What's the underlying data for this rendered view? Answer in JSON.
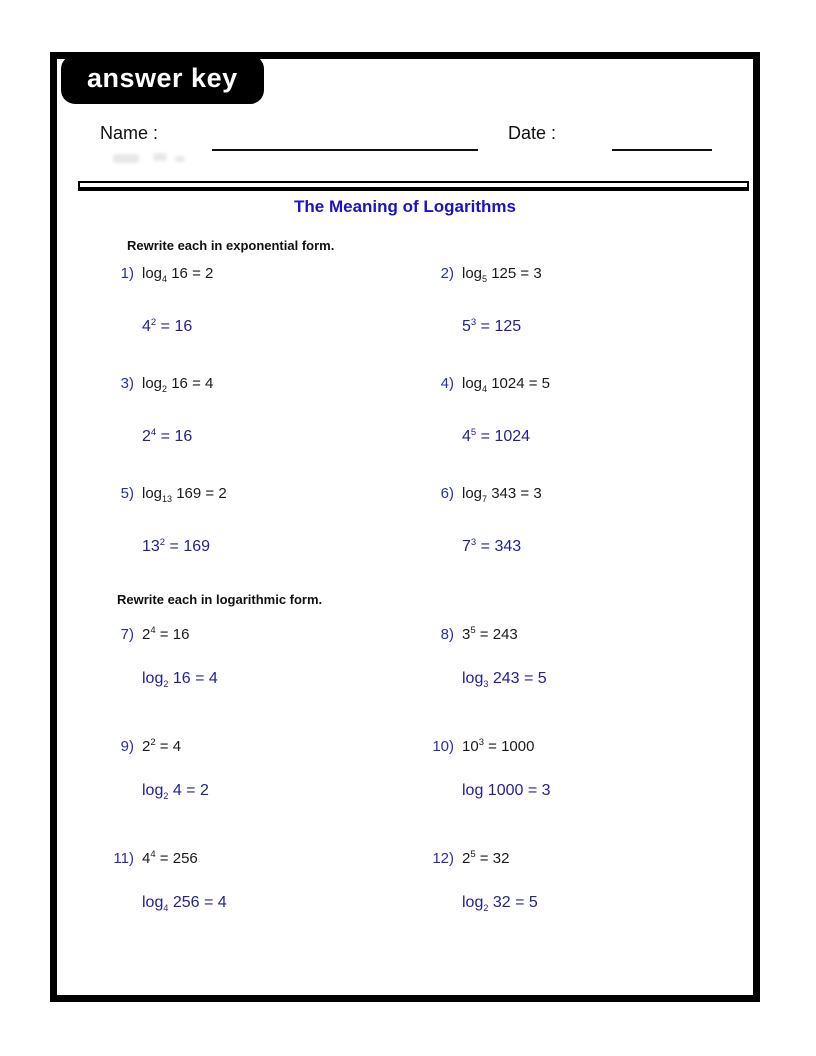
{
  "badge": "answer key",
  "header": {
    "name_label": "Name :",
    "date_label": "Date :"
  },
  "title": "The Meaning of Logarithms",
  "colors": {
    "title_blue": "#1b12c4",
    "number_blue": "#2b2bb4",
    "answer_blue": "#212199",
    "text_black": "#1a1a1a",
    "badge_bg": "#000000",
    "badge_text": "#ffffff"
  },
  "sections": [
    {
      "instruction": "Rewrite each in exponential form.",
      "problems": [
        {
          "num": "1)",
          "question": "log_4_ 16 = 2",
          "answer": "4^2^ = 16"
        },
        {
          "num": "2)",
          "question": "log_5_ 125 = 3",
          "answer": "5^3^ = 125"
        },
        {
          "num": "3)",
          "question": "log_2_ 16 = 4",
          "answer": "2^4^ = 16"
        },
        {
          "num": "4)",
          "question": "log_4_ 1024 = 5",
          "answer": "4^5^ = 1024"
        },
        {
          "num": "5)",
          "question": "log_13_ 169 = 2",
          "answer": "13^2^ = 169"
        },
        {
          "num": "6)",
          "question": "log_7_ 343 = 3",
          "answer": "7^3^ = 343"
        }
      ]
    },
    {
      "instruction": "Rewrite each in logarithmic form.",
      "problems": [
        {
          "num": "7)",
          "question": "2^4^ = 16",
          "answer": "log_2_ 16 = 4"
        },
        {
          "num": "8)",
          "question": "3^5^ = 243",
          "answer": "log_3_ 243 = 5"
        },
        {
          "num": "9)",
          "question": "2^2^ = 4",
          "answer": "log_2_ 4 = 2"
        },
        {
          "num": "10)",
          "question": "10^3^ = 1000",
          "answer": "log 1000 = 3"
        },
        {
          "num": "11)",
          "question": "4^4^ = 256",
          "answer": "log_4_ 256 = 4"
        },
        {
          "num": "12)",
          "question": "2^5^ = 32",
          "answer": "log_2_ 32 = 5"
        }
      ]
    }
  ]
}
